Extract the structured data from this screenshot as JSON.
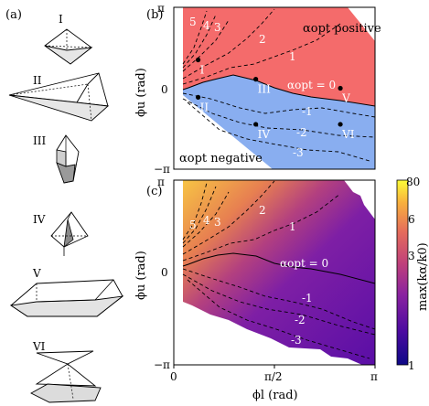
{
  "figure": {
    "left_panel": {
      "label": "(a)",
      "shapes": [
        "I",
        "II",
        "III",
        "IV",
        "V",
        "VI"
      ]
    }
  },
  "chart_data": [
    {
      "type": "heatmap",
      "panel_label": "(b)",
      "xlim": [
        0,
        3.1416
      ],
      "ylim": [
        -3.1416,
        3.1416
      ],
      "y_ticks": [
        "π",
        "0",
        "−π"
      ],
      "ylabel": "ϕu (rad)",
      "region_top_label": "αopt positive",
      "region_bottom_label": "αopt negative",
      "colors": {
        "positive": "#f46b6b",
        "negative": "#89aef0"
      },
      "contour_labels": [
        "5",
        "4",
        "3",
        "2",
        "1",
        "αopt = 0",
        "-1",
        "-2",
        "-3"
      ],
      "points": [
        {
          "label": "I",
          "x": 0.38,
          "y": 1.1
        },
        {
          "label": "II",
          "x": 0.38,
          "y": -0.35
        },
        {
          "label": "III",
          "x": 1.28,
          "y": 0.35
        },
        {
          "label": "IV",
          "x": 1.28,
          "y": -1.4
        },
        {
          "label": "V",
          "x": 2.6,
          "y": 0.0
        },
        {
          "label": "VI",
          "x": 2.6,
          "y": -1.4
        }
      ]
    },
    {
      "type": "heatmap",
      "panel_label": "(c)",
      "xlim": [
        0,
        3.1416
      ],
      "ylim": [
        -3.1416,
        3.1416
      ],
      "x_ticks": [
        "0",
        "π/2",
        "π"
      ],
      "y_ticks": [
        "π",
        "0",
        "−π"
      ],
      "xlabel": "ϕl (rad)",
      "ylabel": "ϕu (rad)",
      "contour_labels": [
        "5",
        "4",
        "3",
        "2",
        "1",
        "αopt = 0",
        "-1",
        "-2",
        "-3"
      ],
      "colorbar": {
        "label": "max(kα/k0)",
        "ticks": [
          "80",
          "6",
          "3",
          "1"
        ],
        "colormap": [
          "#fcfd38",
          "#f8b13d",
          "#e56c5b",
          "#c0417a",
          "#8a22a0",
          "#4b0aa0",
          "#0d0887"
        ]
      }
    }
  ]
}
